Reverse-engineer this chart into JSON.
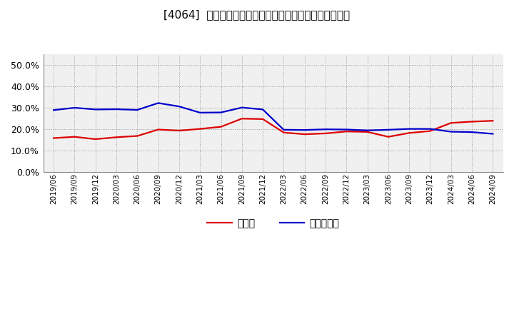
{
  "title": "[4064]  現頲金、有利子負債の総資産に対する比率の推移",
  "dates": [
    "2019/06",
    "2019/09",
    "2019/12",
    "2020/03",
    "2020/06",
    "2020/09",
    "2020/12",
    "2021/03",
    "2021/06",
    "2021/09",
    "2021/12",
    "2022/03",
    "2022/06",
    "2022/09",
    "2022/12",
    "2023/03",
    "2023/06",
    "2023/09",
    "2023/12",
    "2024/03",
    "2024/06",
    "2024/09"
  ],
  "cash": [
    0.157,
    0.163,
    0.152,
    0.161,
    0.167,
    0.197,
    0.192,
    0.2,
    0.21,
    0.248,
    0.246,
    0.183,
    0.175,
    0.179,
    0.188,
    0.186,
    0.163,
    0.181,
    0.19,
    0.228,
    0.234,
    0.238
  ],
  "debt": [
    0.288,
    0.299,
    0.291,
    0.292,
    0.289,
    0.321,
    0.305,
    0.276,
    0.277,
    0.3,
    0.291,
    0.196,
    0.195,
    0.198,
    0.197,
    0.193,
    0.196,
    0.2,
    0.2,
    0.187,
    0.185,
    0.177
  ],
  "cash_color": "#dd0000",
  "debt_color": "#0000cc",
  "cash_label": "現頲金",
  "debt_label": "有利子負債",
  "ylim": [
    0.0,
    0.55
  ],
  "yticks": [
    0.0,
    0.1,
    0.2,
    0.3,
    0.4,
    0.5
  ],
  "bg_color": "#ffffff",
  "plot_bg_color": "#f0f0f0",
  "grid_color": "#999999",
  "title_fontsize": 11
}
